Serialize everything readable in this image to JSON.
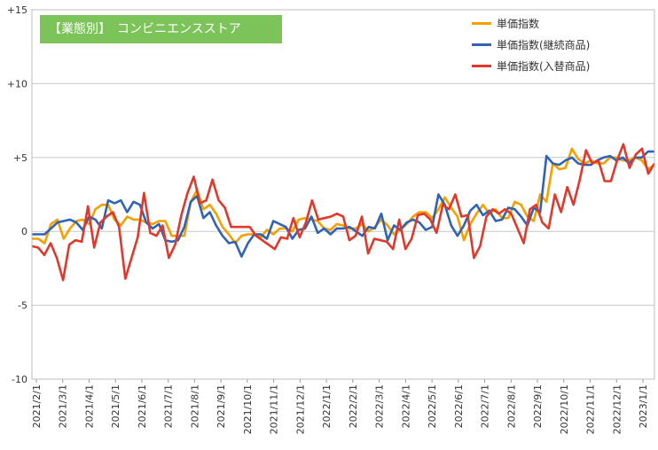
{
  "chart_data": {
    "type": "line",
    "title": "【業態別】　コンビニエンスストア",
    "ylim": [
      -10,
      15
    ],
    "yticks": [
      -10,
      -5,
      0,
      5,
      10,
      15
    ],
    "ytick_labels": [
      "-10",
      "-5",
      "0",
      "+5",
      "+10",
      "+15"
    ],
    "xtick_labels": [
      "2021/2/1",
      "2021/3/1",
      "2021/4/1",
      "2021/5/1",
      "2021/6/1",
      "2021/7/1",
      "2021/8/1",
      "2021/9/1",
      "2021/10/1",
      "2021/11/1",
      "2021/12/1",
      "2022/1/1",
      "2022/2/1",
      "2022/3/1",
      "2022/4/1",
      "2022/5/1",
      "2022/6/1",
      "2022/7/1",
      "2022/8/1",
      "2022/9/1",
      "2022/10/1",
      "2022/11/1",
      "2022/12/1",
      "2023/1/1"
    ],
    "grid": true,
    "legend_position": "top-right",
    "series": [
      {
        "name": "単価指数",
        "color": "#f5a000",
        "values": [
          -0.5,
          -0.5,
          -0.8,
          0.5,
          0.8,
          -0.5,
          0.2,
          0.7,
          0.8,
          0.5,
          1.5,
          1.8,
          1.8,
          0.8,
          0.4,
          1.0,
          0.8,
          0.8,
          0.6,
          0.5,
          0.7,
          0.7,
          -0.3,
          -0.3,
          -0.3,
          2.0,
          2.8,
          1.5,
          1.8,
          1.2,
          0.3,
          -0.2,
          -0.8,
          -0.3,
          -0.2,
          -0.2,
          -0.4,
          0.1,
          -0.2,
          0.2,
          0.2,
          0.0,
          0.8,
          0.9,
          0.8,
          0.7,
          0.2,
          0.1,
          0.5,
          0.4,
          0.2,
          0.2,
          0.5,
          0.0,
          0.3,
          0.8,
          0.4,
          -0.2,
          0.1,
          0.5,
          1.0,
          1.3,
          1.3,
          0.9,
          1.5,
          2.3,
          1.6,
          1.0,
          -0.6,
          0.5,
          1.2,
          1.8,
          1.2,
          1.5,
          0.9,
          0.9,
          2.0,
          1.8,
          1.0,
          0.7,
          2.5,
          2.0,
          4.6,
          4.2,
          4.3,
          5.6,
          4.9,
          4.6,
          4.8,
          4.6,
          4.6,
          5.0,
          5.0,
          4.8,
          4.8,
          5.0,
          4.8,
          4.2,
          4.5
        ]
      },
      {
        "name": "単価指数(継続商品)",
        "color": "#2f63b5",
        "values": [
          -0.2,
          -0.2,
          -0.2,
          0.2,
          0.6,
          0.7,
          0.8,
          0.6,
          0.1,
          1.0,
          0.8,
          0.2,
          2.1,
          1.9,
          2.1,
          1.3,
          2.0,
          1.8,
          0.6,
          0.2,
          0.5,
          -0.6,
          -0.7,
          -0.6,
          0.3,
          2.0,
          2.4,
          0.9,
          1.3,
          0.4,
          -0.3,
          -0.8,
          -0.7,
          -1.7,
          -0.8,
          -0.2,
          -0.2,
          -0.5,
          0.7,
          0.5,
          0.3,
          -0.5,
          0.1,
          0.2,
          1.0,
          -0.1,
          0.2,
          -0.2,
          0.2,
          0.2,
          0.3,
          0.0,
          -0.3,
          0.3,
          0.2,
          1.2,
          -0.6,
          0.4,
          0.1,
          0.6,
          0.8,
          0.6,
          0.1,
          0.3,
          2.5,
          1.8,
          0.4,
          -0.3,
          0.4,
          1.4,
          1.8,
          1.1,
          1.4,
          0.7,
          0.8,
          1.6,
          1.5,
          1.0,
          0.4,
          1.6,
          1.3,
          5.1,
          4.6,
          4.5,
          4.8,
          5.0,
          4.6,
          4.5,
          4.5,
          4.8,
          5.0,
          5.1,
          4.8,
          5.0,
          4.6,
          5.0,
          5.0,
          5.4,
          5.4
        ]
      },
      {
        "name": "単価指数(入替商品)",
        "color": "#e0392b",
        "values": [
          -1.0,
          -1.1,
          -1.6,
          -0.8,
          -1.8,
          -3.3,
          -0.9,
          -0.6,
          -0.7,
          1.7,
          -1.1,
          0.6,
          1.0,
          1.3,
          0.3,
          -3.2,
          -1.8,
          -0.4,
          2.6,
          -0.1,
          -0.3,
          0.4,
          -1.8,
          -0.9,
          1.1,
          2.6,
          3.7,
          1.9,
          2.1,
          3.5,
          2.1,
          1.6,
          0.3,
          0.3,
          0.3,
          0.3,
          -0.3,
          -0.6,
          -0.9,
          -1.2,
          -0.4,
          -0.5,
          0.9,
          -0.4,
          0.6,
          2.1,
          0.8,
          0.9,
          1.0,
          1.2,
          1.0,
          -0.6,
          -0.3,
          1.0,
          -1.5,
          -0.5,
          -0.6,
          -0.7,
          -1.2,
          0.8,
          -1.2,
          -0.5,
          1.1,
          1.2,
          0.8,
          -0.1,
          1.8,
          1.5,
          2.5,
          1.0,
          1.1,
          -1.8,
          -1.0,
          1.0,
          1.5,
          1.2,
          1.5,
          1.2,
          0.2,
          -0.8,
          1.5,
          1.8,
          0.6,
          0.2,
          2.5,
          1.3,
          3.0,
          1.8,
          3.5,
          5.5,
          4.6,
          4.8,
          3.4,
          3.4,
          4.8,
          5.9,
          4.3,
          5.2,
          5.6,
          3.9,
          4.6
        ]
      }
    ]
  }
}
